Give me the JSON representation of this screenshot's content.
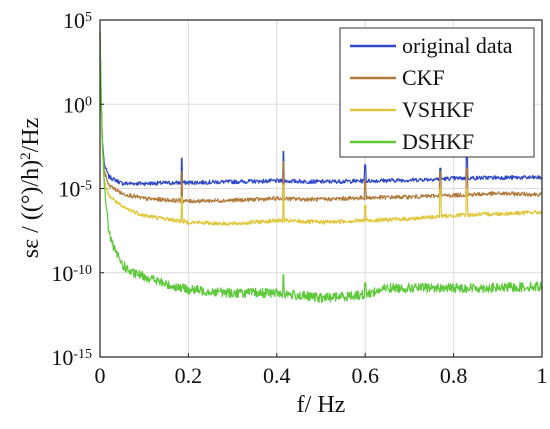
{
  "chart_data": {
    "type": "line",
    "title": "",
    "xlabel": "f/ Hz",
    "ylabel": "sε / ((°)/h)²/Hz",
    "ylabel_parts": {
      "prefix": "sε / ((°)/h)",
      "sup": "2",
      "suffix": "/Hz"
    },
    "xlim": [
      0,
      1
    ],
    "ylim_log10": [
      -15,
      5
    ],
    "yscale": "log",
    "x_ticks": [
      {
        "value": 0,
        "label": "0"
      },
      {
        "value": 0.2,
        "label": "0.2"
      },
      {
        "value": 0.4,
        "label": "0.4"
      },
      {
        "value": 0.6,
        "label": "0.6"
      },
      {
        "value": 0.8,
        "label": "0.8"
      },
      {
        "value": 1,
        "label": "1"
      }
    ],
    "y_ticks": [
      {
        "exp": 5,
        "base": "10",
        "sup": "5"
      },
      {
        "exp": 0,
        "base": "10",
        "sup": "0"
      },
      {
        "exp": -5,
        "base": "10",
        "sup": "-5"
      },
      {
        "exp": -10,
        "base": "10",
        "sup": "-10"
      },
      {
        "exp": -15,
        "base": "10",
        "sup": "-15"
      }
    ],
    "grid": true,
    "legend_position": "top-right",
    "series": [
      {
        "name": "original data",
        "color": "#2f49c8",
        "x": [
          0,
          0.002,
          0.005,
          0.01,
          0.02,
          0.05,
          0.1,
          0.2,
          0.3,
          0.4,
          0.5,
          0.6,
          0.7,
          0.8,
          0.9,
          1.0
        ],
        "log10_y": [
          4.3,
          1.0,
          -2.0,
          -3.6,
          -4.3,
          -4.7,
          -4.7,
          -4.65,
          -4.6,
          -4.55,
          -4.6,
          -4.55,
          -4.5,
          -4.4,
          -4.35,
          -4.35
        ],
        "spikes": [
          [
            0.185,
            -3.2
          ],
          [
            0.415,
            -2.8
          ],
          [
            0.6,
            -3.6
          ],
          [
            0.77,
            -3.8
          ],
          [
            0.83,
            -3.0
          ]
        ]
      },
      {
        "name": "CKF",
        "color": "#b07a3a",
        "x": [
          0,
          0.002,
          0.005,
          0.01,
          0.02,
          0.05,
          0.1,
          0.2,
          0.3,
          0.4,
          0.5,
          0.6,
          0.7,
          0.8,
          0.9,
          1.0
        ],
        "log10_y": [
          4.3,
          1.0,
          -2.3,
          -4.0,
          -4.8,
          -5.3,
          -5.6,
          -5.75,
          -5.7,
          -5.6,
          -5.65,
          -5.55,
          -5.5,
          -5.4,
          -5.3,
          -5.35
        ],
        "spikes": [
          [
            0.185,
            -4.0
          ],
          [
            0.415,
            -3.4
          ],
          [
            0.6,
            -4.5
          ],
          [
            0.77,
            -4.0
          ],
          [
            0.83,
            -3.8
          ]
        ]
      },
      {
        "name": "VSHKF",
        "color": "#e0c63a",
        "x": [
          0,
          0.002,
          0.005,
          0.01,
          0.02,
          0.05,
          0.1,
          0.2,
          0.3,
          0.4,
          0.5,
          0.6,
          0.7,
          0.8,
          0.9,
          1.0
        ],
        "log10_y": [
          4.3,
          1.0,
          -2.6,
          -4.6,
          -5.4,
          -6.1,
          -6.6,
          -7.0,
          -7.1,
          -6.9,
          -7.0,
          -6.9,
          -6.8,
          -6.6,
          -6.5,
          -6.4
        ],
        "spikes": [
          [
            0.185,
            -5.5
          ],
          [
            0.415,
            -4.8
          ],
          [
            0.6,
            -6.0
          ],
          [
            0.77,
            -5.0
          ],
          [
            0.83,
            -5.0
          ]
        ]
      },
      {
        "name": "DSHKF",
        "color": "#5cc83a",
        "x": [
          0,
          0.002,
          0.005,
          0.01,
          0.02,
          0.03,
          0.05,
          0.07,
          0.1,
          0.15,
          0.2,
          0.3,
          0.4,
          0.5,
          0.55,
          0.6,
          0.65,
          0.7,
          0.8,
          0.9,
          1.0
        ],
        "log10_y": [
          4.0,
          1.5,
          -2.0,
          -5.0,
          -7.5,
          -8.5,
          -9.5,
          -10.0,
          -10.2,
          -10.7,
          -11.0,
          -11.2,
          -11.2,
          -11.5,
          -11.4,
          -11.3,
          -10.9,
          -10.9,
          -10.9,
          -10.9,
          -10.8
        ],
        "spikes": [
          [
            0.415,
            -10.1
          ],
          [
            0.6,
            -10.6
          ]
        ]
      }
    ]
  }
}
